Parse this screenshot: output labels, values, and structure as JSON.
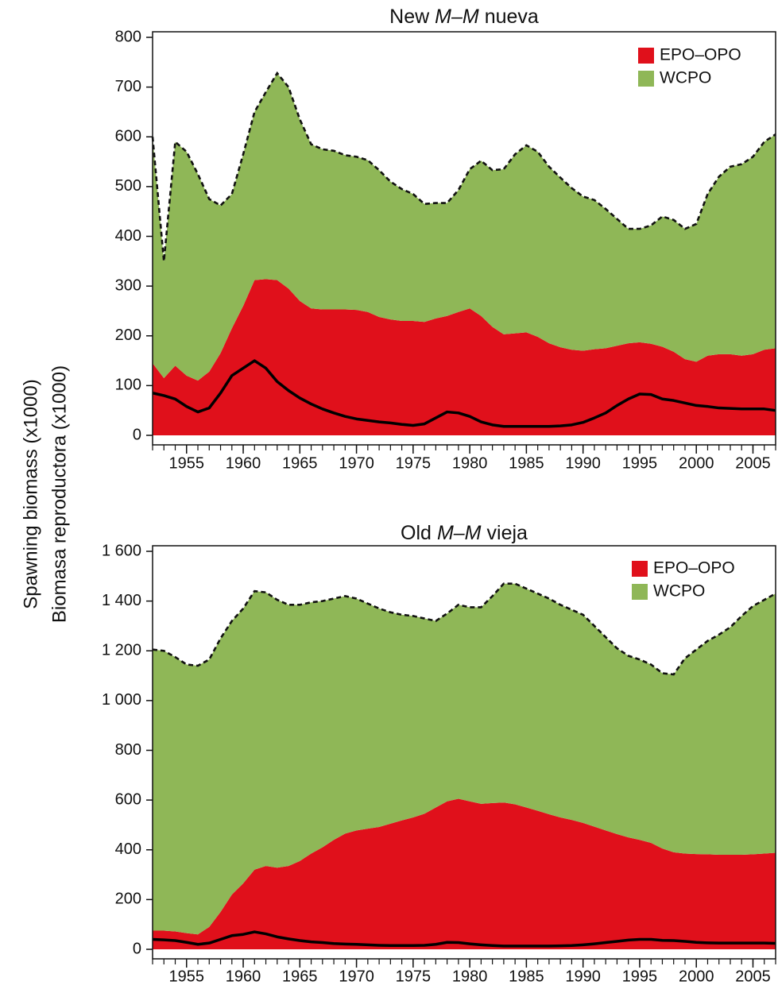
{
  "ylabel": [
    "Spawning biomass (x1000)",
    "Biomasa reproductora (x1000)"
  ],
  "chart_data": [
    {
      "type": "area",
      "title": [
        "New",
        "M–M",
        "nueva"
      ],
      "title_italic": [
        false,
        true,
        false
      ],
      "x": [
        1952,
        1953,
        1954,
        1955,
        1956,
        1957,
        1958,
        1959,
        1960,
        1961,
        1962,
        1963,
        1964,
        1965,
        1966,
        1967,
        1968,
        1969,
        1970,
        1971,
        1972,
        1973,
        1974,
        1975,
        1976,
        1977,
        1978,
        1979,
        1980,
        1981,
        1982,
        1983,
        1984,
        1985,
        1986,
        1987,
        1988,
        1989,
        1990,
        1991,
        1992,
        1993,
        1994,
        1995,
        1996,
        1997,
        1998,
        1999,
        2000,
        2001,
        2002,
        2003,
        2004,
        2005,
        2006,
        2007
      ],
      "xlim": [
        1952,
        2007
      ],
      "xticks": [
        1955,
        1960,
        1965,
        1970,
        1975,
        1980,
        1985,
        1990,
        1995,
        2000,
        2005
      ],
      "ylim": [
        0,
        800
      ],
      "yticks": [
        0,
        100,
        200,
        300,
        400,
        500,
        600,
        700,
        800
      ],
      "legend": "upper right",
      "series": [
        {
          "name": "EPO–OPO",
          "color": "#e0101b",
          "values": [
            145,
            115,
            140,
            120,
            110,
            128,
            165,
            215,
            260,
            312,
            314,
            312,
            295,
            270,
            255,
            253,
            253,
            253,
            252,
            248,
            238,
            233,
            230,
            230,
            228,
            235,
            240,
            248,
            255,
            240,
            218,
            203,
            205,
            207,
            198,
            185,
            177,
            172,
            170,
            173,
            175,
            180,
            185,
            187,
            184,
            178,
            168,
            153,
            148,
            160,
            163,
            163,
            160,
            163,
            172,
            175
          ]
        },
        {
          "name": "WCPO",
          "color": "#8fb757",
          "values": [
            455,
            235,
            450,
            450,
            415,
            347,
            297,
            270,
            305,
            338,
            376,
            416,
            405,
            365,
            330,
            322,
            319,
            310,
            308,
            305,
            295,
            277,
            265,
            255,
            237,
            232,
            227,
            245,
            280,
            312,
            315,
            332,
            360,
            376,
            372,
            355,
            341,
            325,
            310,
            300,
            280,
            255,
            230,
            228,
            238,
            262,
            265,
            262,
            277,
            325,
            357,
            377,
            385,
            397,
            418,
            430
          ]
        }
      ],
      "line": {
        "color": "#000000",
        "values": [
          85,
          80,
          73,
          58,
          47,
          55,
          85,
          120,
          135,
          150,
          135,
          108,
          90,
          75,
          63,
          53,
          45,
          38,
          33,
          30,
          27,
          25,
          22,
          20,
          23,
          35,
          47,
          45,
          38,
          27,
          21,
          18,
          18,
          18,
          18,
          18,
          19,
          21,
          26,
          35,
          45,
          60,
          73,
          83,
          82,
          73,
          70,
          65,
          60,
          58,
          55,
          54,
          53,
          53,
          53,
          50
        ]
      }
    },
    {
      "type": "area",
      "title": [
        "Old",
        "M–M",
        "vieja"
      ],
      "title_italic": [
        false,
        true,
        false
      ],
      "x": [
        1952,
        1953,
        1954,
        1955,
        1956,
        1957,
        1958,
        1959,
        1960,
        1961,
        1962,
        1963,
        1964,
        1965,
        1966,
        1967,
        1968,
        1969,
        1970,
        1971,
        1972,
        1973,
        1974,
        1975,
        1976,
        1977,
        1978,
        1979,
        1980,
        1981,
        1982,
        1983,
        1984,
        1985,
        1986,
        1987,
        1988,
        1989,
        1990,
        1991,
        1992,
        1993,
        1994,
        1995,
        1996,
        1997,
        1998,
        1999,
        2000,
        2001,
        2002,
        2003,
        2004,
        2005,
        2006,
        2007
      ],
      "xlim": [
        1952,
        2007
      ],
      "xticks": [
        1955,
        1960,
        1965,
        1970,
        1975,
        1980,
        1985,
        1990,
        1995,
        2000,
        2005
      ],
      "ylim": [
        0,
        1600
      ],
      "yticks": [
        0,
        200,
        400,
        600,
        800,
        {
          "value": 1000,
          "label": "1 000"
        },
        {
          "value": 1200,
          "label": "1 200"
        },
        {
          "value": 1400,
          "label": "1 400"
        },
        {
          "value": 1600,
          "label": "1 600"
        }
      ],
      "legend": "upper right",
      "series": [
        {
          "name": "EPO–OPO",
          "color": "#e0101b",
          "values": [
            75,
            75,
            72,
            65,
            60,
            90,
            150,
            220,
            265,
            320,
            335,
            328,
            335,
            355,
            385,
            410,
            440,
            465,
            478,
            485,
            492,
            505,
            518,
            530,
            545,
            570,
            595,
            605,
            595,
            585,
            588,
            590,
            583,
            570,
            557,
            543,
            530,
            520,
            508,
            493,
            478,
            463,
            450,
            440,
            428,
            405,
            390,
            385,
            383,
            382,
            380,
            380,
            380,
            382,
            385,
            388
          ]
        },
        {
          "name": "WCPO",
          "color": "#8fb757",
          "values": [
            1130,
            1125,
            1103,
            1080,
            1080,
            1075,
            1100,
            1100,
            1105,
            1120,
            1100,
            1077,
            1050,
            1030,
            1010,
            990,
            970,
            955,
            932,
            905,
            878,
            850,
            827,
            810,
            785,
            750,
            755,
            780,
            780,
            790,
            832,
            880,
            887,
            880,
            873,
            867,
            855,
            845,
            837,
            807,
            777,
            747,
            730,
            725,
            717,
            705,
            715,
            785,
            822,
            858,
            885,
            915,
            960,
            998,
            1020,
            1042
          ]
        }
      ],
      "line": {
        "color": "#000000",
        "values": [
          40,
          38,
          35,
          28,
          20,
          25,
          40,
          55,
          60,
          70,
          62,
          50,
          42,
          35,
          30,
          27,
          23,
          21,
          20,
          18,
          16,
          15,
          15,
          15,
          16,
          20,
          28,
          27,
          22,
          18,
          15,
          13,
          13,
          13,
          13,
          13,
          14,
          15,
          18,
          22,
          27,
          32,
          37,
          40,
          40,
          36,
          35,
          32,
          28,
          26,
          25,
          25,
          25,
          25,
          25,
          24
        ]
      }
    }
  ]
}
